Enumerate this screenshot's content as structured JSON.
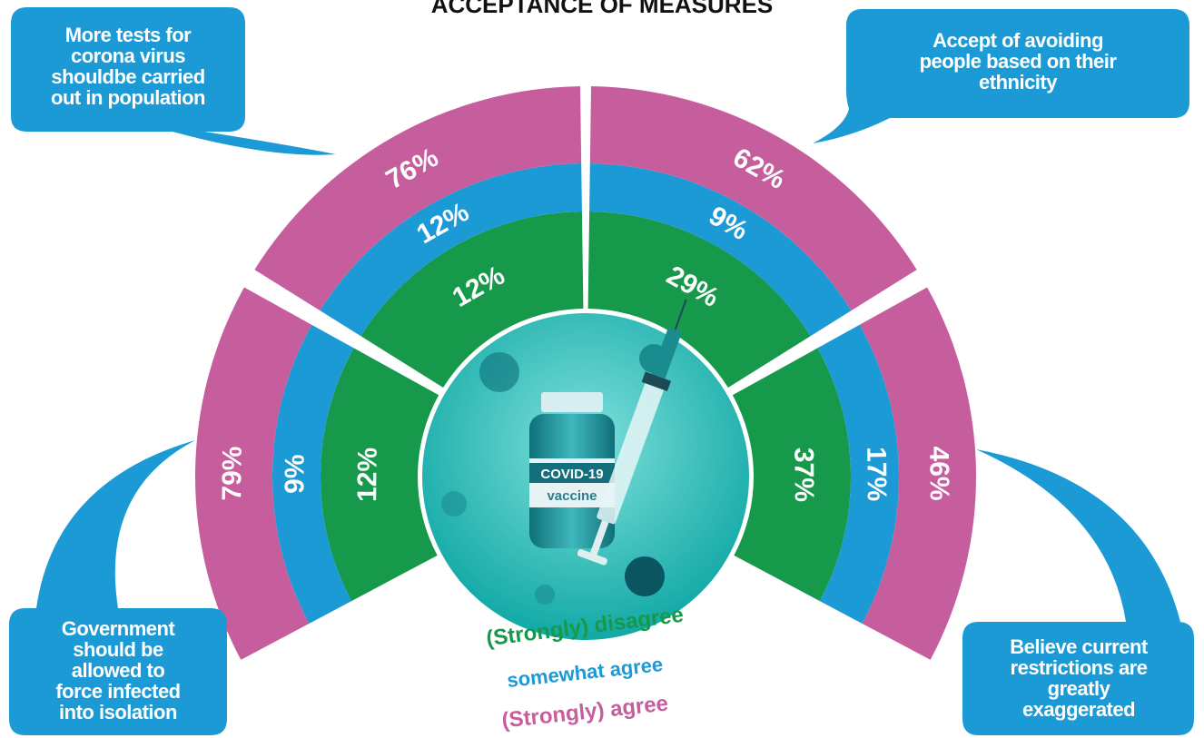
{
  "chart_data": {
    "type": "radial",
    "title": "ACCEPTANCE OF MEASURES",
    "categories": [
      [
        "More tests for",
        "corona virus",
        "shouldbe carried",
        "out in population"
      ],
      [
        "Accept of avoiding",
        "people based on their",
        "ethnicity"
      ],
      [
        "Government",
        "should be",
        "allowed to",
        "force infected",
        "into isolation"
      ],
      [
        "Believe current",
        "restrictions are",
        "greatly",
        "exaggerated"
      ]
    ],
    "series": [
      {
        "name": "(Strongly) disagree",
        "color": "#16994a",
        "values": [
          12,
          29,
          12,
          37
        ],
        "value_labels": [
          "12%",
          "29%",
          "12%",
          "37%"
        ]
      },
      {
        "name": "somewhat agree",
        "color": "#1b9ad6",
        "values": [
          12,
          9,
          9,
          17
        ],
        "value_labels": [
          "12%",
          "9%",
          "9%",
          "17%"
        ]
      },
      {
        "name": "(Strongly) agree",
        "color": "#c65e9e",
        "values": [
          76,
          62,
          79,
          46
        ],
        "value_labels": [
          "76%",
          "62%",
          "79%",
          "46%"
        ]
      }
    ],
    "center_labels": [
      "COVID-19",
      "vaccine"
    ]
  }
}
